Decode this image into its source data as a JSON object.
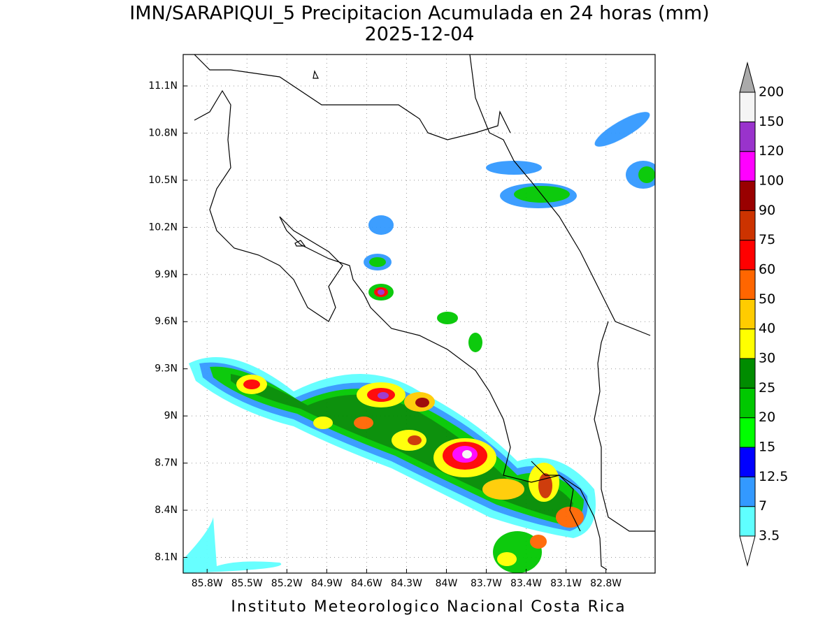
{
  "title": "IMN/SARAPIQUI_5 Precipitacion Acumulada en 24 horas (mm)",
  "date": "2025-12-04",
  "footer": "Instituto Meteorologico Nacional Costa Rica",
  "map": {
    "lon_range": [
      -85.98,
      -82.43
    ],
    "lat_range": [
      8.0,
      11.3
    ],
    "lon_ticks": [
      {
        "value": -85.8,
        "label": "85.8W"
      },
      {
        "value": -85.5,
        "label": "85.5W"
      },
      {
        "value": -85.2,
        "label": "85.2W"
      },
      {
        "value": -84.9,
        "label": "84.9W"
      },
      {
        "value": -84.6,
        "label": "84.6W"
      },
      {
        "value": -84.3,
        "label": "84.3W"
      },
      {
        "value": -84.0,
        "label": "84W"
      },
      {
        "value": -83.7,
        "label": "83.7W"
      },
      {
        "value": -83.4,
        "label": "83.4W"
      },
      {
        "value": -83.1,
        "label": "83.1W"
      },
      {
        "value": -82.8,
        "label": "82.8W"
      }
    ],
    "lat_ticks": [
      {
        "value": 8.1,
        "label": "8.1N"
      },
      {
        "value": 8.4,
        "label": "8.4N"
      },
      {
        "value": 8.7,
        "label": "8.7N"
      },
      {
        "value": 9.0,
        "label": "9N"
      },
      {
        "value": 9.3,
        "label": "9.3N"
      },
      {
        "value": 9.6,
        "label": "9.6N"
      },
      {
        "value": 9.9,
        "label": "9.9N"
      },
      {
        "value": 10.2,
        "label": "10.2N"
      },
      {
        "value": 10.5,
        "label": "10.5N"
      },
      {
        "value": 10.8,
        "label": "10.8N"
      },
      {
        "value": 11.1,
        "label": "11.1N"
      }
    ],
    "grid": true
  },
  "colorbar": {
    "levels": [
      3.5,
      7,
      12.5,
      15,
      20,
      25,
      30,
      40,
      50,
      60,
      75,
      90,
      100,
      120,
      150,
      200
    ],
    "colors": [
      "#5fffff",
      "#3399ff",
      "#0000ff",
      "#00ff00",
      "#00c800",
      "#008c00",
      "#ffff00",
      "#ffcc00",
      "#ff6600",
      "#ff0000",
      "#cc3300",
      "#990000",
      "#ff00ff",
      "#9933cc",
      "#f5f5f5"
    ],
    "over_color": "#aaaaaa",
    "under_color": "#ffffff"
  }
}
